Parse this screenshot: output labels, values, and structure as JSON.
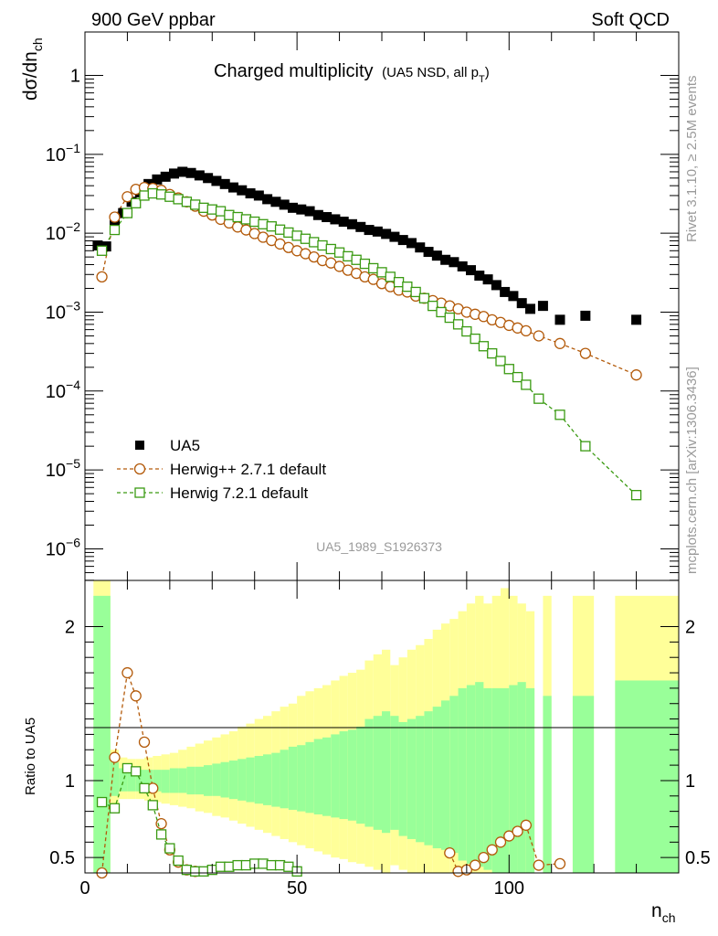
{
  "header": {
    "left": "900 GeV ppbar",
    "right": "Soft QCD",
    "title": "Charged multiplicity",
    "title_sub": "(UA5 NSD, all p",
    "title_sub_idx": "T",
    "title_sub_end": ")",
    "analysis": "UA5_1989_S1926373",
    "side_rivet": "Rivet 3.1.10, ≥ 2.5M events",
    "side_mcplots": "mcplots.cern.ch [arXiv:1306.3436]"
  },
  "axes": {
    "ylabel_main": "dσ/dn",
    "ylabel_main_sub": "ch",
    "ylabel_ratio": "Ratio to UA5",
    "xlabel": "n",
    "xlabel_sub": "ch",
    "x_ticks": [
      "0",
      "50",
      "100"
    ],
    "ratio_ticks": [
      "0.5",
      "1",
      "2"
    ],
    "main_ticks": [
      {
        "base": "1",
        "exp": ""
      },
      {
        "base": "10",
        "exp": "−1"
      },
      {
        "base": "10",
        "exp": "−2"
      },
      {
        "base": "10",
        "exp": "−3"
      },
      {
        "base": "10",
        "exp": "−4"
      },
      {
        "base": "10",
        "exp": "−5"
      },
      {
        "base": "10",
        "exp": "−6"
      }
    ]
  },
  "legend": [
    {
      "label": "UA5",
      "color": "#000000",
      "marker": "filled-square"
    },
    {
      "label": "Herwig++ 2.7.1 default",
      "color": "#b35a0a",
      "marker": "open-circle"
    },
    {
      "label": "Herwig 7.2.1 default",
      "color": "#3a9a12",
      "marker": "open-square"
    }
  ],
  "chart_data": {
    "type": "scatter",
    "x_range": [
      0,
      140
    ],
    "main_y_range_log10": [
      -6.4,
      0.55
    ],
    "ratio_y_range": [
      0.4,
      2.3
    ],
    "log_y": true,
    "series": [
      {
        "name": "UA5",
        "color": "#000000",
        "x": [
          3,
          5,
          7,
          9,
          11,
          13,
          15,
          17,
          19,
          21,
          23,
          25,
          27,
          29,
          31,
          33,
          35,
          37,
          39,
          41,
          43,
          45,
          47,
          49,
          51,
          53,
          55,
          57,
          59,
          61,
          63,
          65,
          67,
          69,
          71,
          73,
          75,
          77,
          79,
          81,
          83,
          85,
          87,
          89,
          91,
          93,
          95,
          97,
          99,
          101,
          103,
          105,
          108,
          112,
          118,
          130
        ],
        "y": [
          0.007,
          0.0068,
          0.014,
          0.018,
          0.025,
          0.033,
          0.042,
          0.048,
          0.052,
          0.057,
          0.06,
          0.058,
          0.054,
          0.05,
          0.046,
          0.042,
          0.038,
          0.035,
          0.032,
          0.03,
          0.027,
          0.025,
          0.023,
          0.021,
          0.02,
          0.019,
          0.017,
          0.016,
          0.015,
          0.014,
          0.013,
          0.012,
          0.011,
          0.0105,
          0.0098,
          0.009,
          0.0082,
          0.0075,
          0.0066,
          0.0058,
          0.0052,
          0.0046,
          0.0043,
          0.0038,
          0.0034,
          0.0029,
          0.0026,
          0.0022,
          0.0018,
          0.0016,
          0.0013,
          0.0011,
          0.0012,
          0.0008,
          0.0009,
          0.0008
        ]
      },
      {
        "name": "Herwig++ 2.7.1 default",
        "color": "#b35a0a",
        "x": [
          4,
          7,
          10,
          12,
          14,
          16,
          18,
          20,
          22,
          24,
          26,
          28,
          30,
          32,
          34,
          36,
          38,
          40,
          42,
          44,
          46,
          48,
          50,
          52,
          54,
          56,
          58,
          60,
          62,
          64,
          66,
          68,
          70,
          72,
          74,
          76,
          78,
          80,
          82,
          84,
          86,
          88,
          90,
          92,
          94,
          96,
          98,
          100,
          102,
          104,
          107,
          112,
          118,
          130
        ],
        "y": [
          0.0028,
          0.016,
          0.029,
          0.036,
          0.038,
          0.037,
          0.035,
          0.031,
          0.028,
          0.025,
          0.022,
          0.019,
          0.017,
          0.015,
          0.0135,
          0.012,
          0.011,
          0.0099,
          0.0089,
          0.0081,
          0.0073,
          0.0066,
          0.006,
          0.0055,
          0.005,
          0.0045,
          0.0042,
          0.0038,
          0.0034,
          0.0031,
          0.0028,
          0.0026,
          0.0023,
          0.0021,
          0.0019,
          0.0018,
          0.0016,
          0.0015,
          0.0014,
          0.0013,
          0.0012,
          0.0011,
          0.001,
          0.00094,
          0.00088,
          0.0008,
          0.00074,
          0.00068,
          0.00063,
          0.00058,
          0.0005,
          0.0004,
          0.0003,
          0.00016
        ]
      },
      {
        "name": "Herwig 7.2.1 default",
        "color": "#3a9a12",
        "x": [
          4,
          7,
          10,
          12,
          14,
          16,
          18,
          20,
          22,
          24,
          26,
          28,
          30,
          32,
          34,
          36,
          38,
          40,
          42,
          44,
          46,
          48,
          50,
          52,
          54,
          56,
          58,
          60,
          62,
          64,
          66,
          68,
          70,
          72,
          74,
          76,
          78,
          80,
          82,
          84,
          86,
          88,
          90,
          92,
          94,
          96,
          98,
          100,
          102,
          104,
          107,
          112,
          118,
          130
        ],
        "y": [
          0.006,
          0.011,
          0.018,
          0.024,
          0.03,
          0.032,
          0.031,
          0.029,
          0.027,
          0.025,
          0.023,
          0.021,
          0.02,
          0.019,
          0.017,
          0.016,
          0.015,
          0.014,
          0.013,
          0.0122,
          0.0111,
          0.0102,
          0.0093,
          0.0085,
          0.0077,
          0.007,
          0.0063,
          0.0057,
          0.0051,
          0.0046,
          0.0041,
          0.0036,
          0.0032,
          0.0028,
          0.0024,
          0.0021,
          0.0018,
          0.0015,
          0.0012,
          0.001,
          0.00085,
          0.0007,
          0.00057,
          0.00046,
          0.00037,
          0.0003,
          0.00024,
          0.00019,
          0.00015,
          0.00012,
          8e-05,
          5e-05,
          2e-05,
          4.8e-06
        ]
      }
    ],
    "ratio_series": [
      {
        "name": "Herwig++ 2.7.1 default",
        "color": "#b35a0a",
        "x": [
          4,
          7,
          10,
          12,
          14,
          16,
          18,
          20,
          22,
          24,
          26,
          86,
          88,
          90,
          92,
          94,
          96,
          98,
          100,
          102,
          104,
          107,
          112
        ],
        "y": [
          0.4,
          1.15,
          1.7,
          1.55,
          1.25,
          0.95,
          0.72,
          0.55,
          0.47,
          0.42,
          0.41,
          0.53,
          0.41,
          0.42,
          0.45,
          0.5,
          0.55,
          0.6,
          0.64,
          0.67,
          0.71,
          0.45,
          0.46
        ]
      },
      {
        "name": "Herwig 7.2.1 default",
        "color": "#3a9a12",
        "x": [
          4,
          7,
          10,
          12,
          14,
          16,
          18,
          20,
          22,
          24,
          26,
          28,
          30,
          32,
          34,
          36,
          38,
          40,
          42,
          44,
          46,
          48,
          50
        ],
        "y": [
          0.86,
          0.82,
          1.08,
          1.06,
          0.95,
          0.84,
          0.65,
          0.56,
          0.48,
          0.42,
          0.41,
          0.41,
          0.42,
          0.44,
          0.44,
          0.45,
          0.45,
          0.46,
          0.46,
          0.45,
          0.45,
          0.44,
          0.41
        ]
      }
    ],
    "bands": {
      "x_edges": [
        2,
        6,
        8,
        10,
        12,
        14,
        16,
        18,
        20,
        22,
        24,
        26,
        28,
        30,
        32,
        34,
        36,
        38,
        40,
        42,
        44,
        46,
        48,
        50,
        52,
        54,
        56,
        58,
        60,
        62,
        64,
        66,
        68,
        70,
        72,
        74,
        76,
        78,
        80,
        82,
        84,
        86,
        88,
        90,
        92,
        94,
        96,
        98,
        100,
        102,
        104,
        106,
        108,
        110,
        112,
        115,
        120,
        122,
        125,
        140
      ],
      "stat_hi": [
        2.2,
        1.12,
        1.08,
        1.07,
        1.07,
        1.07,
        1.07,
        1.07,
        1.08,
        1.08,
        1.09,
        1.09,
        1.1,
        1.11,
        1.12,
        1.13,
        1.14,
        1.15,
        1.16,
        1.17,
        1.18,
        1.2,
        1.22,
        1.23,
        1.25,
        1.27,
        1.28,
        1.3,
        1.32,
        1.33,
        1.35,
        1.4,
        1.42,
        1.45,
        1.42,
        1.38,
        1.4,
        1.42,
        1.45,
        1.48,
        1.52,
        1.55,
        1.6,
        1.62,
        1.64,
        1.6,
        1.6,
        1.6,
        1.62,
        1.64,
        1.6,
        1.0,
        1.55,
        1.0,
        1.0,
        1.55,
        1.0,
        1.0,
        1.65
      ],
      "stat_lo": [
        0.0,
        0.9,
        0.93,
        0.93,
        0.93,
        0.93,
        0.93,
        0.92,
        0.92,
        0.92,
        0.91,
        0.91,
        0.9,
        0.9,
        0.89,
        0.88,
        0.87,
        0.86,
        0.85,
        0.84,
        0.83,
        0.82,
        0.81,
        0.8,
        0.79,
        0.78,
        0.77,
        0.76,
        0.75,
        0.74,
        0.72,
        0.7,
        0.68,
        0.66,
        0.68,
        0.64,
        0.62,
        0.6,
        0.58,
        0.56,
        0.55,
        0.53,
        0.48,
        0.46,
        0.44,
        0.42,
        0.4,
        0.4,
        0.4,
        0.38,
        0.4,
        1.0,
        0.0,
        1.0,
        1.0,
        0.0,
        1.0,
        1.0,
        0.0
      ],
      "tot_hi": [
        2.3,
        1.2,
        1.15,
        1.14,
        1.14,
        1.15,
        1.16,
        1.17,
        1.18,
        1.2,
        1.22,
        1.24,
        1.26,
        1.28,
        1.3,
        1.32,
        1.35,
        1.37,
        1.4,
        1.42,
        1.45,
        1.48,
        1.5,
        1.55,
        1.58,
        1.6,
        1.62,
        1.65,
        1.68,
        1.7,
        1.72,
        1.78,
        1.82,
        1.85,
        1.75,
        1.8,
        1.85,
        1.88,
        1.92,
        1.98,
        2.02,
        2.05,
        2.1,
        2.15,
        2.2,
        2.15,
        2.2,
        2.25,
        2.2,
        2.15,
        2.1,
        1.0,
        2.2,
        1.0,
        1.0,
        2.2,
        1.0,
        1.0,
        2.2
      ],
      "tot_lo": [
        0.0,
        0.82,
        0.88,
        0.88,
        0.88,
        0.87,
        0.86,
        0.85,
        0.84,
        0.83,
        0.82,
        0.8,
        0.79,
        0.77,
        0.76,
        0.74,
        0.72,
        0.7,
        0.68,
        0.66,
        0.64,
        0.62,
        0.6,
        0.58,
        0.56,
        0.54,
        0.52,
        0.5,
        0.49,
        0.47,
        0.46,
        0.44,
        0.42,
        0.4,
        0.45,
        0.42,
        0.4,
        0.38,
        0.36,
        0.35,
        0.34,
        0.32,
        0.3,
        0.3,
        0.3,
        0.3,
        0.3,
        0.3,
        0.3,
        0.3,
        0.3,
        1.0,
        0.0,
        1.0,
        1.0,
        0.0,
        1.0,
        1.0,
        0.0
      ]
    }
  }
}
